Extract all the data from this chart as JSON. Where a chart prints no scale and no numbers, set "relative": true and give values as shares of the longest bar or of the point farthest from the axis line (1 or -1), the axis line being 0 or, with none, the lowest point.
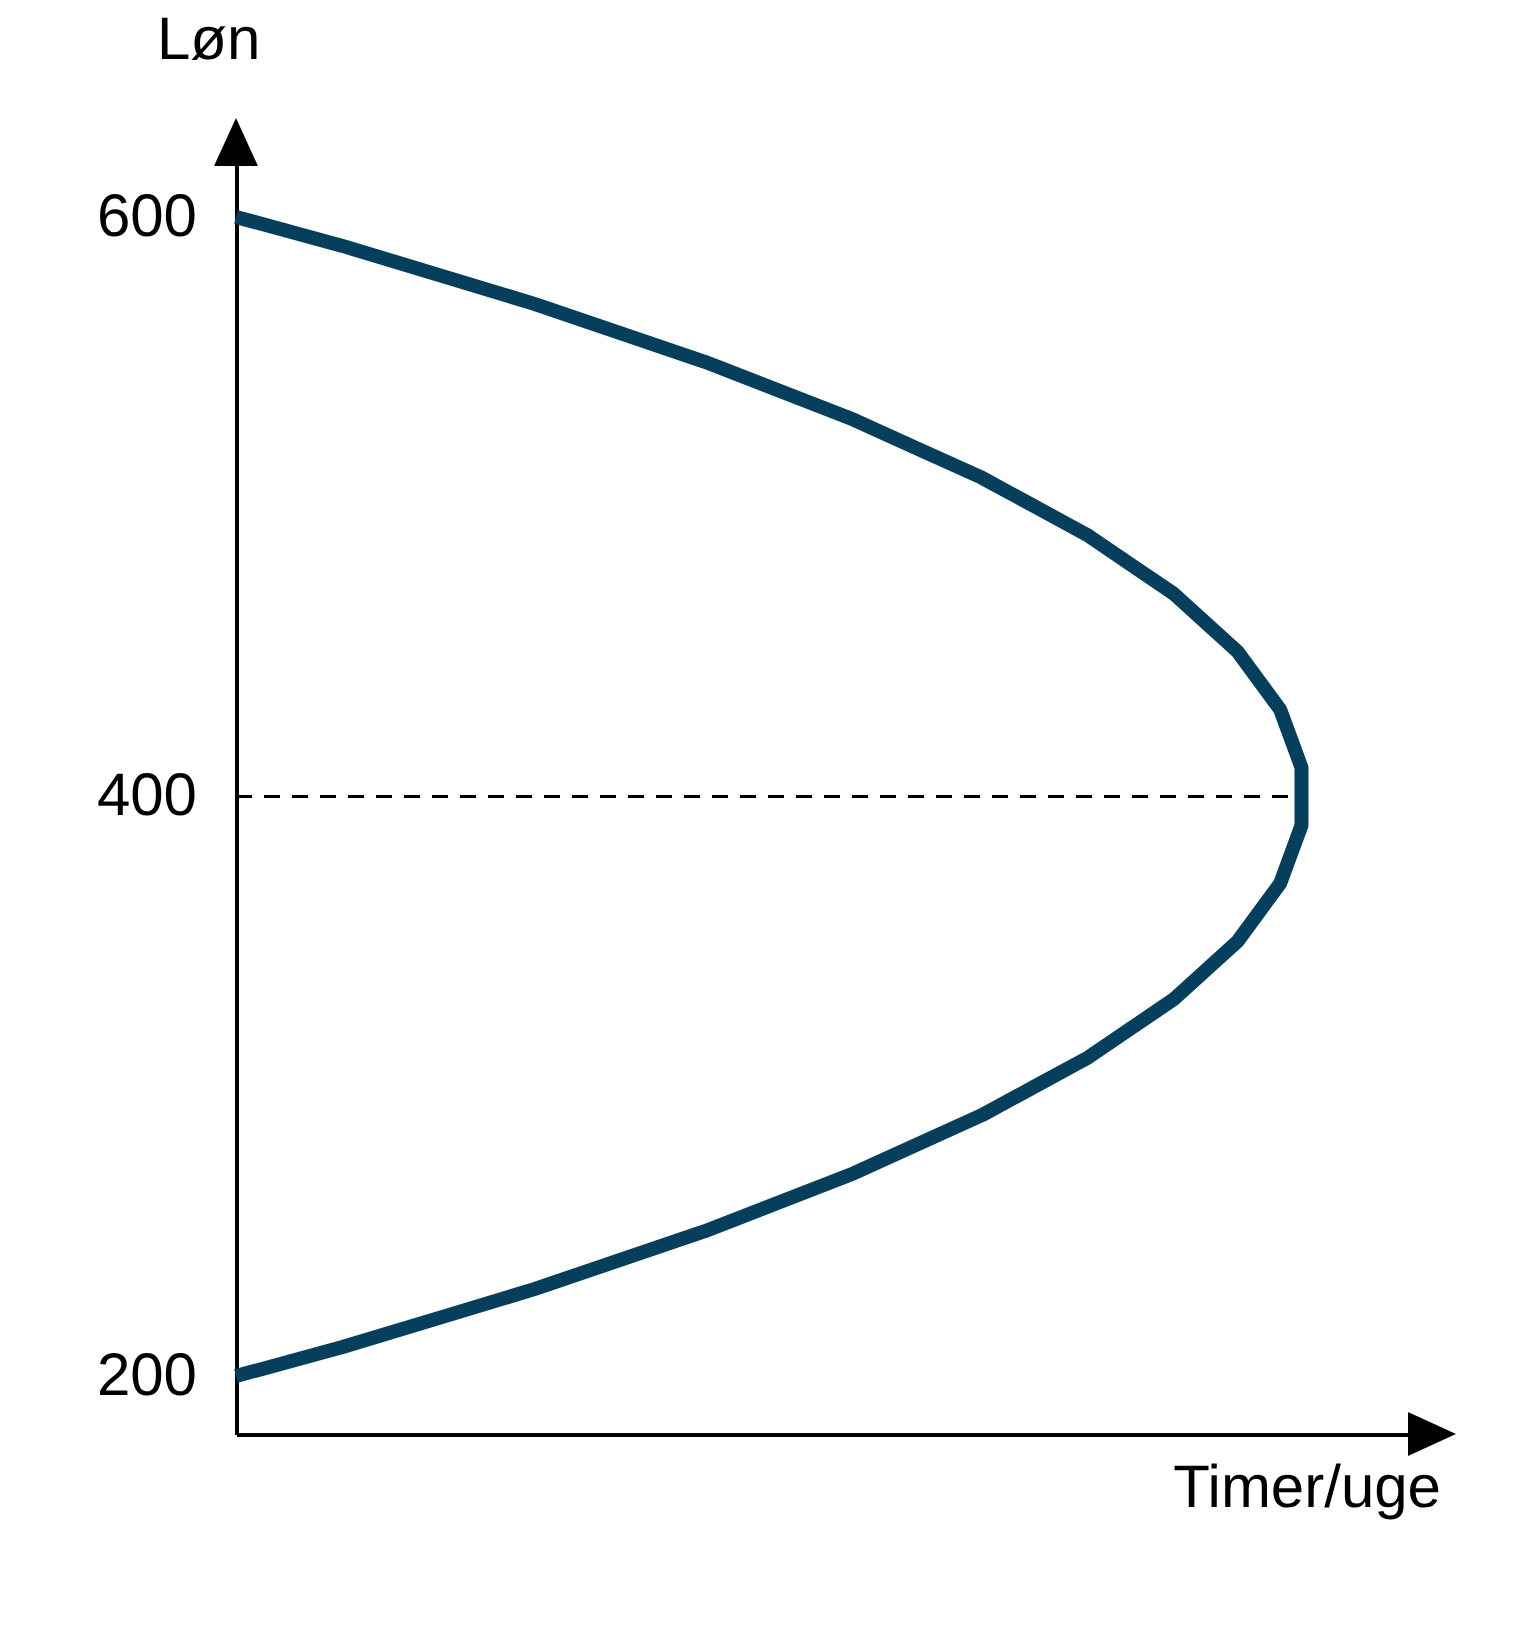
{
  "chart_data": {
    "type": "line",
    "orientation": "horizontal",
    "relative": true,
    "xlabel": "Timer/uge",
    "ylabel": "Løn",
    "series": [
      {
        "color": "#063f5c",
        "values": [
          0,
          0.1,
          0.19,
          0.28,
          0.36,
          0.44,
          0.51,
          0.58,
          0.64,
          0.7,
          0.75,
          0.8,
          0.84,
          0.88,
          0.91,
          0.94,
          0.96,
          0.98,
          0.99,
          1,
          1,
          1,
          0.99,
          0.98,
          0.96,
          0.94,
          0.91,
          0.88,
          0.84,
          0.8,
          0.75,
          0.7,
          0.64,
          0.58,
          0.51,
          0.44,
          0.36,
          0.28,
          0.19,
          0.1,
          0
        ],
        "x": [
          600,
          590,
          580,
          570,
          560,
          550,
          540,
          530,
          520,
          510,
          500,
          490,
          480,
          470,
          460,
          450,
          440,
          430,
          420,
          410,
          400,
          390,
          380,
          370,
          360,
          350,
          340,
          330,
          320,
          310,
          300,
          290,
          280,
          270,
          260,
          250,
          240,
          230,
          220,
          210,
          200
        ]
      }
    ],
    "ylim": [
      180,
      630
    ],
    "yticks": [
      200,
      400,
      600
    ],
    "tick_labels": "y",
    "marker": "none",
    "line_style": "solid",
    "ref_lines": [
      {
        "axis": "y",
        "value": 400,
        "line_style": "dashed",
        "color": "#000000"
      }
    ]
  }
}
